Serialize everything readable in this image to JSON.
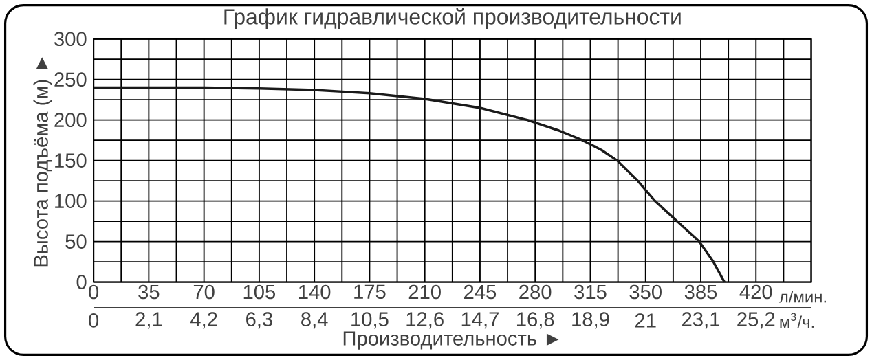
{
  "chart_data": {
    "type": "line",
    "title": "График гидравлической производительности",
    "xlabel": "Производительность ►",
    "ylabel": "Высота подъёма (м) ►",
    "x": [
      0,
      35,
      70,
      105,
      140,
      175,
      210,
      245,
      275,
      295,
      310,
      322,
      332,
      345,
      356,
      370,
      384,
      393,
      400
    ],
    "series": [
      {
        "color": "#1a1a1a",
        "values": [
          240,
          240,
          240,
          239,
          237,
          233,
          226,
          215,
          200,
          187,
          175,
          163,
          150,
          125,
          100,
          75,
          50,
          25,
          0
        ]
      }
    ],
    "xlim": [
      0,
      455
    ],
    "ylim": [
      0,
      300
    ],
    "xticks": [
      0,
      35,
      70,
      105,
      140,
      175,
      210,
      245,
      280,
      315,
      350,
      385,
      420,
      {
        "value": 17.5,
        "label": null
      },
      {
        "value": 52.5,
        "label": null
      },
      {
        "value": 87.5,
        "label": null
      },
      {
        "value": 122.5,
        "label": null
      },
      {
        "value": 157.5,
        "label": null
      },
      {
        "value": 192.5,
        "label": null
      },
      {
        "value": 227.5,
        "label": null
      },
      {
        "value": 262.5,
        "label": null
      },
      {
        "value": 297.5,
        "label": null
      },
      {
        "value": 332.5,
        "label": null
      },
      {
        "value": 367.5,
        "label": null
      },
      {
        "value": 402.5,
        "label": null
      },
      {
        "value": 437.5,
        "label": null
      },
      {
        "value": 455,
        "label": null
      }
    ],
    "x2lim": [
      0,
      27.3
    ],
    "x2ticks": [
      0,
      {
        "value": 2.1,
        "label": "2,1"
      },
      {
        "value": 4.2,
        "label": "4,2"
      },
      {
        "value": 6.3,
        "label": "6,3"
      },
      {
        "value": 8.4,
        "label": "8,4"
      },
      {
        "value": 10.5,
        "label": "10,5"
      },
      {
        "value": 12.6,
        "label": "12,6"
      },
      {
        "value": 14.7,
        "label": "14,7"
      },
      {
        "value": 16.8,
        "label": "16,8"
      },
      {
        "value": 18.9,
        "label": "18,9"
      },
      21,
      {
        "value": 23.1,
        "label": "23,1"
      },
      {
        "value": 25.2,
        "label": "25,2"
      }
    ],
    "yticks": [
      0,
      50,
      100,
      150,
      200,
      250,
      300,
      {
        "value": 25,
        "label": null
      },
      {
        "value": 75,
        "label": null
      },
      {
        "value": 125,
        "label": null
      },
      {
        "value": 175,
        "label": null
      },
      {
        "value": 225,
        "label": null
      },
      {
        "value": 275,
        "label": null
      }
    ],
    "annotations": [
      "л/мин.",
      "м$^{3}$/ч."
    ],
    "grid": true,
    "marker": "none",
    "line_style": "solid"
  }
}
